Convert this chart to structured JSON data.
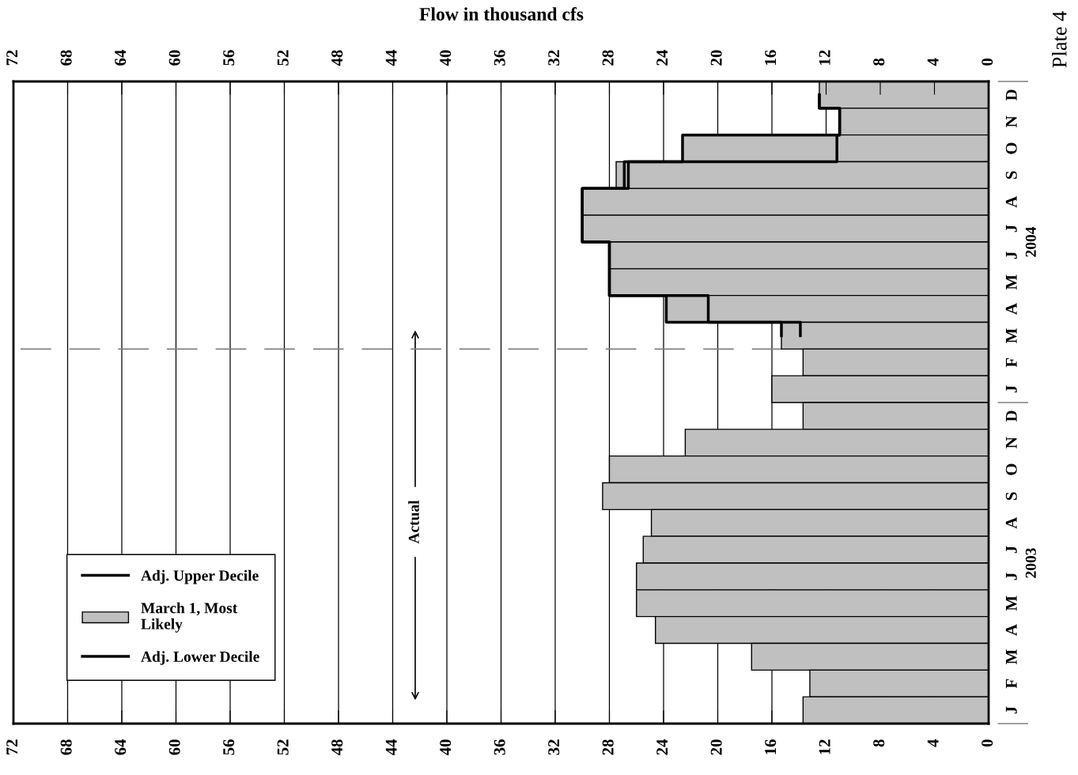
{
  "chart_data": {
    "type": "bar",
    "orientation": "horizontal",
    "title": "Flow in thousand cfs",
    "categories": [
      "D",
      "N",
      "O",
      "S",
      "A",
      "J",
      "J",
      "M",
      "A",
      "M",
      "F",
      "J",
      "D",
      "N",
      "O",
      "S",
      "A",
      "J",
      "J",
      "M",
      "A",
      "M",
      "F",
      "J"
    ],
    "series": [
      {
        "name": "Adj. Upper Decile",
        "type": "step",
        "color": "#000000",
        "values": [
          12.5,
          11.0,
          22.6,
          26.9,
          30.0,
          30.0,
          28.0,
          28.0,
          23.8,
          15.3,
          null,
          null,
          null,
          null,
          null,
          null,
          null,
          null,
          null,
          null,
          null,
          null,
          null,
          null
        ]
      },
      {
        "name": "March 1, Most Likely",
        "color": "#c0c0c0",
        "values": [
          12.5,
          11.0,
          22.6,
          27.5,
          30.0,
          30.0,
          28.0,
          28.0,
          23.8,
          15.3,
          13.7,
          16.0,
          13.7,
          22.4,
          28.0,
          28.5,
          24.9,
          25.5,
          26.0,
          26.0,
          24.6,
          17.5,
          13.2,
          13.7
        ]
      },
      {
        "name": "Adj. Lower Decile",
        "type": "step",
        "color": "#000000",
        "values": [
          12.5,
          11.0,
          11.2,
          26.6,
          30.0,
          30.0,
          28.0,
          28.0,
          20.7,
          13.9,
          null,
          null,
          null,
          null,
          null,
          null,
          null,
          null,
          null,
          null,
          null,
          null,
          null,
          null
        ]
      }
    ],
    "xlim": [
      72,
      0
    ],
    "xticks": [
      0,
      4,
      8,
      12,
      16,
      20,
      24,
      28,
      32,
      36,
      40,
      44,
      48,
      52,
      56,
      60,
      64,
      68,
      72
    ],
    "x2lim": [
      72,
      0
    ],
    "x2ticks": [
      0,
      4,
      8,
      12,
      16,
      20,
      24,
      28,
      32,
      36,
      40,
      44,
      48,
      52,
      56,
      60,
      64,
      68,
      72
    ],
    "annotations": [
      "Actual",
      "2003",
      "2004",
      "Plate 4"
    ],
    "grid": "x",
    "legend": "left"
  }
}
